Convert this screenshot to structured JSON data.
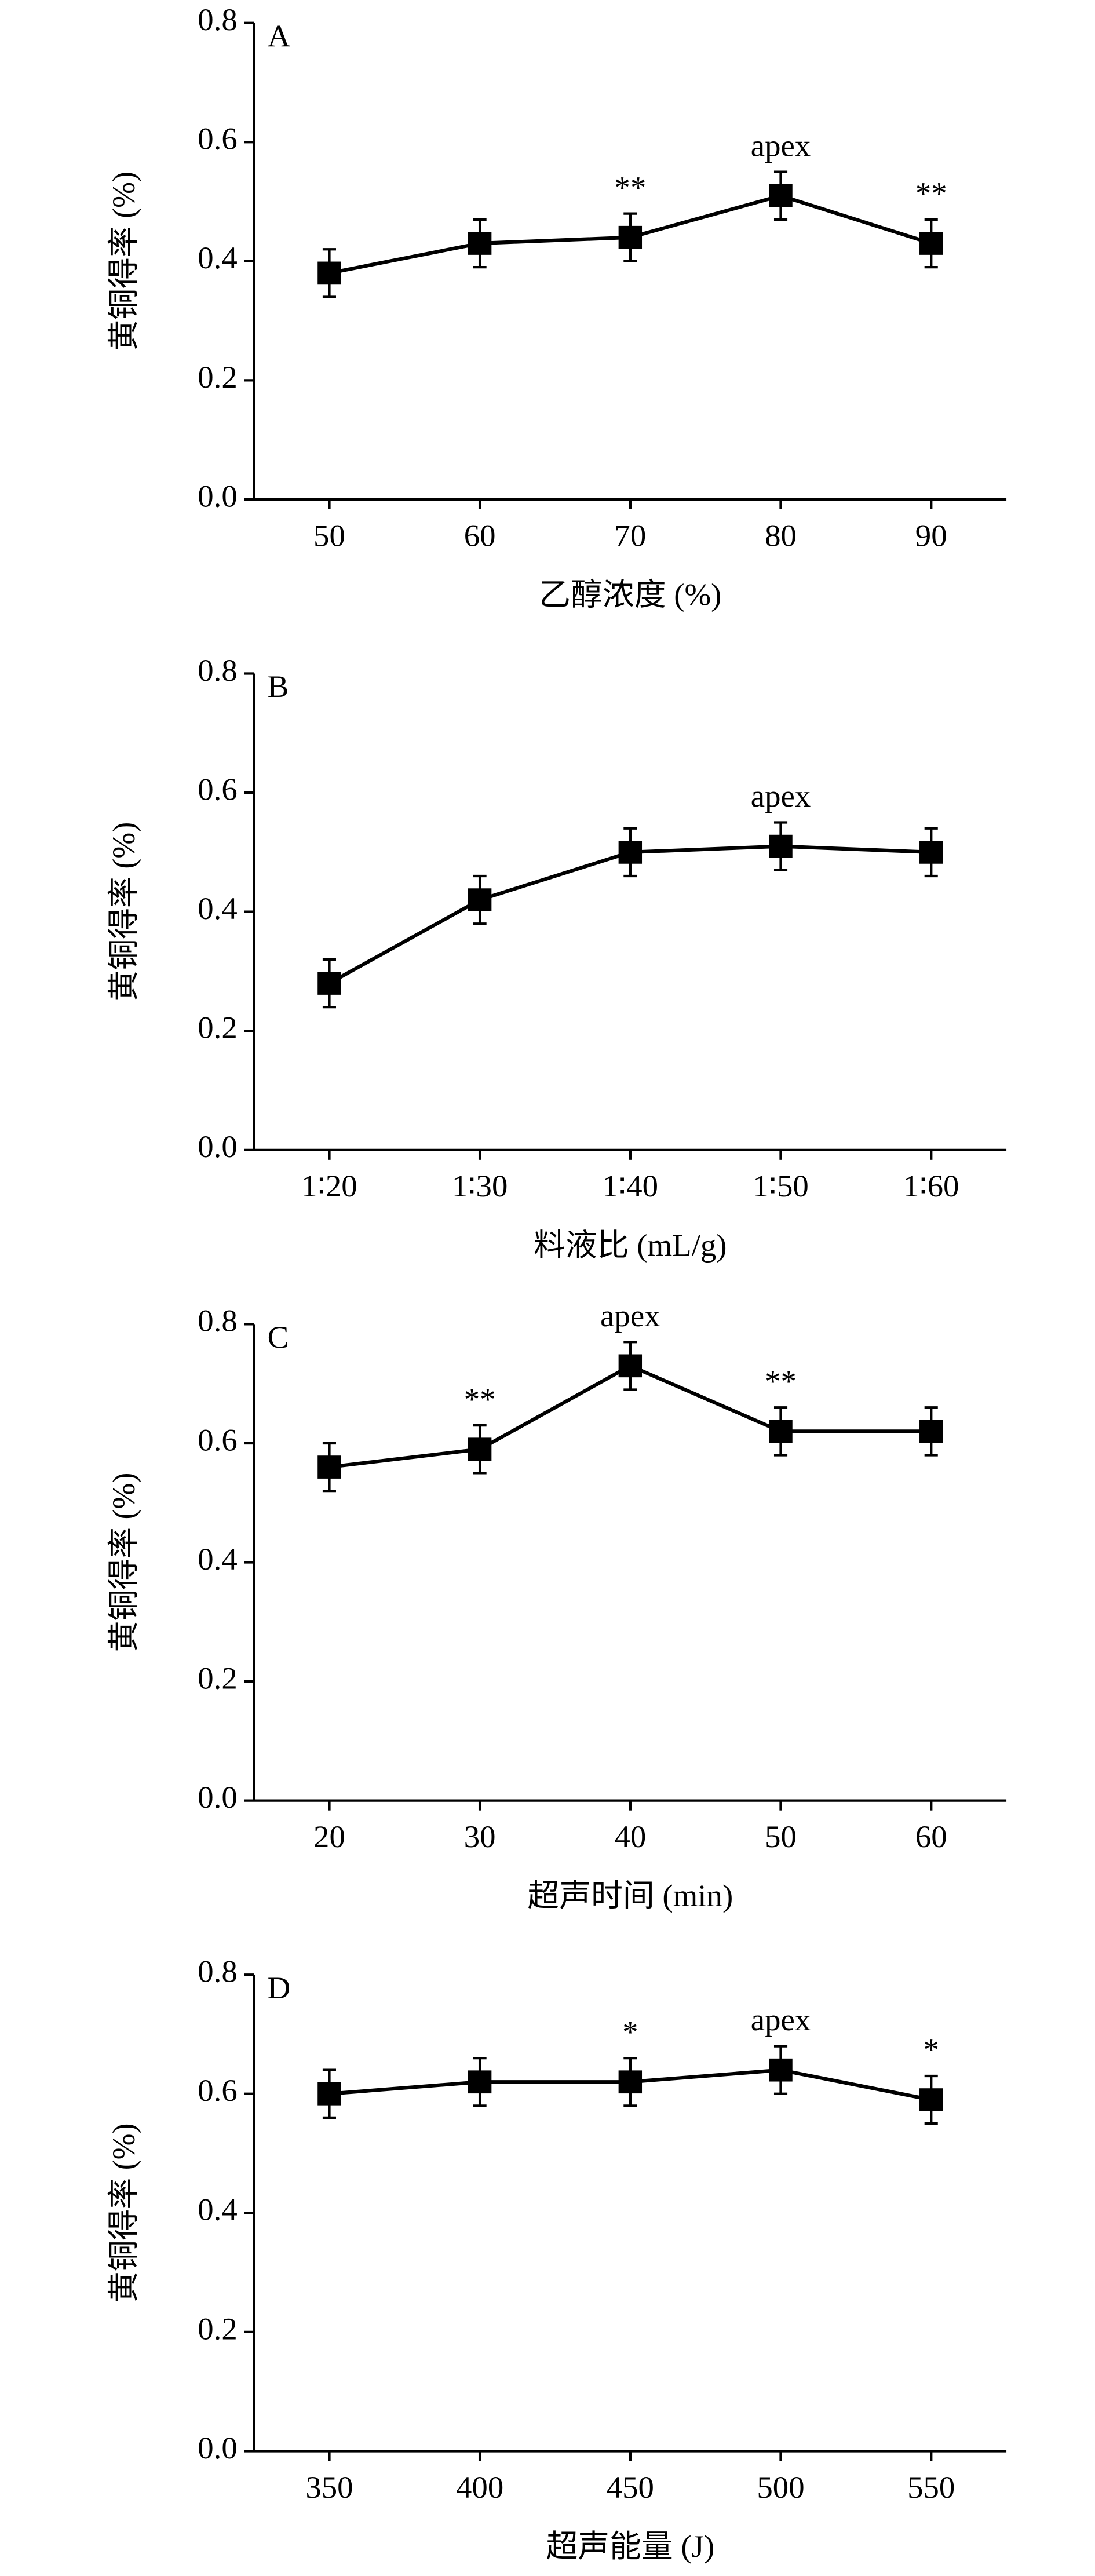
{
  "chart_data": [
    {
      "type": "line",
      "panel_label": "A",
      "x_label": "乙醇浓度 (%)",
      "y_label": "黄铜得率 (%)",
      "categories": [
        "50",
        "60",
        "70",
        "80",
        "90"
      ],
      "values": [
        0.38,
        0.43,
        0.44,
        0.51,
        0.43
      ],
      "errors": [
        0.04,
        0.04,
        0.04,
        0.04,
        0.04
      ],
      "point_labels": [
        null,
        null,
        "**",
        "apex",
        "**"
      ],
      "color": "#000000",
      "ylim": [
        0,
        0.8
      ],
      "yticks": [
        {
          "value": 0,
          "label": "0.0"
        },
        0.2,
        0.4,
        0.6,
        0.8
      ]
    },
    {
      "type": "line",
      "panel_label": "B",
      "x_label": "料液比 (mL/g)",
      "y_label": "黄铜得率 (%)",
      "categories": [
        "1∶20",
        "1∶30",
        "1∶40",
        "1∶50",
        "1∶60"
      ],
      "values": [
        0.28,
        0.42,
        0.5,
        0.51,
        0.5
      ],
      "errors": [
        0.04,
        0.04,
        0.04,
        0.04,
        0.04
      ],
      "point_labels": [
        null,
        null,
        null,
        "apex",
        null
      ],
      "color": "#000000",
      "ylim": [
        0,
        0.8
      ],
      "yticks": [
        {
          "value": 0,
          "label": "0.0"
        },
        0.2,
        0.4,
        0.6,
        0.8
      ]
    },
    {
      "type": "line",
      "panel_label": "C",
      "x_label": "超声时间 (min)",
      "y_label": "黄铜得率 (%)",
      "categories": [
        "20",
        "30",
        "40",
        "50",
        "60"
      ],
      "values": [
        0.56,
        0.59,
        0.73,
        0.62,
        0.62
      ],
      "errors": [
        0.04,
        0.04,
        0.04,
        0.04,
        0.04
      ],
      "point_labels": [
        null,
        "**",
        "apex",
        "**",
        null
      ],
      "color": "#000000",
      "ylim": [
        0,
        0.8
      ],
      "yticks": [
        {
          "value": 0,
          "label": "0.0"
        },
        0.2,
        0.4,
        0.6,
        0.8
      ]
    },
    {
      "type": "line",
      "panel_label": "D",
      "x_label": "超声能量 (J)",
      "y_label": "黄铜得率 (%)",
      "categories": [
        "350",
        "400",
        "450",
        "500",
        "550"
      ],
      "values": [
        0.6,
        0.62,
        0.62,
        0.64,
        0.59
      ],
      "errors": [
        0.04,
        0.04,
        0.04,
        0.04,
        0.04
      ],
      "point_labels": [
        null,
        null,
        "*",
        "apex",
        "*"
      ],
      "color": "#000000",
      "ylim": [
        0,
        0.8
      ],
      "yticks": [
        {
          "value": 0,
          "label": "0.0"
        },
        0.2,
        0.4,
        0.6,
        0.8
      ]
    }
  ]
}
